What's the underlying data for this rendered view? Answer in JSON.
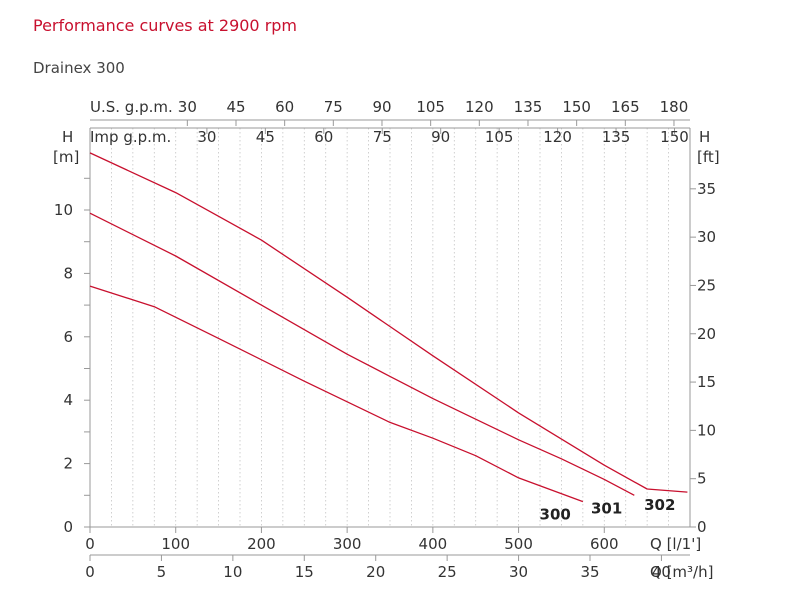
{
  "title": "Performance curves at 2900 rpm",
  "subtitle": "Drainex 300",
  "chart_data": {
    "type": "line",
    "x_unit_top": "Q [l/1']",
    "x_unit_bottom": "Q [m³/h]",
    "y_left_label": "H",
    "y_left_unit": "[m]",
    "y_right_label": "H",
    "y_right_unit": "[ft]",
    "xlim": [
      0,
      700
    ],
    "ylim": [
      0,
      11.8
    ],
    "x_ticks_lmin": [
      0,
      100,
      200,
      300,
      400,
      500,
      600
    ],
    "x_ticks_m3h": [
      0,
      5,
      10,
      15,
      20,
      25,
      30,
      35,
      40
    ],
    "y_ticks_m": [
      0,
      2,
      4,
      6,
      8,
      10
    ],
    "y_ticks_ft": [
      0,
      5,
      10,
      15,
      20,
      25,
      30,
      35
    ],
    "us_gpm_label": "U.S. g.p.m.",
    "us_gpm_ticks": [
      30,
      45,
      60,
      75,
      90,
      105,
      120,
      135,
      150,
      165,
      180
    ],
    "imp_gpm_label": "Imp g.p.m.",
    "imp_gpm_ticks": [
      30,
      45,
      60,
      75,
      90,
      105,
      120,
      135,
      150
    ],
    "series_color": "#c8102e",
    "series": [
      {
        "name": "300",
        "x": [
          0,
          75,
          150,
          250,
          350,
          400,
          450,
          500,
          575
        ],
        "y": [
          7.6,
          6.95,
          5.95,
          4.6,
          3.3,
          2.8,
          2.25,
          1.55,
          0.8
        ]
      },
      {
        "name": "301",
        "x": [
          0,
          100,
          200,
          300,
          350,
          400,
          450,
          500,
          550,
          600,
          635
        ],
        "y": [
          9.9,
          8.55,
          7.0,
          5.45,
          4.75,
          4.05,
          3.4,
          2.75,
          2.15,
          1.5,
          1.0
        ]
      },
      {
        "name": "302",
        "x": [
          0,
          100,
          150,
          200,
          300,
          400,
          500,
          600,
          650,
          697
        ],
        "y": [
          11.8,
          10.55,
          9.8,
          9.05,
          7.25,
          5.4,
          3.6,
          1.95,
          1.2,
          1.1
        ]
      }
    ]
  }
}
